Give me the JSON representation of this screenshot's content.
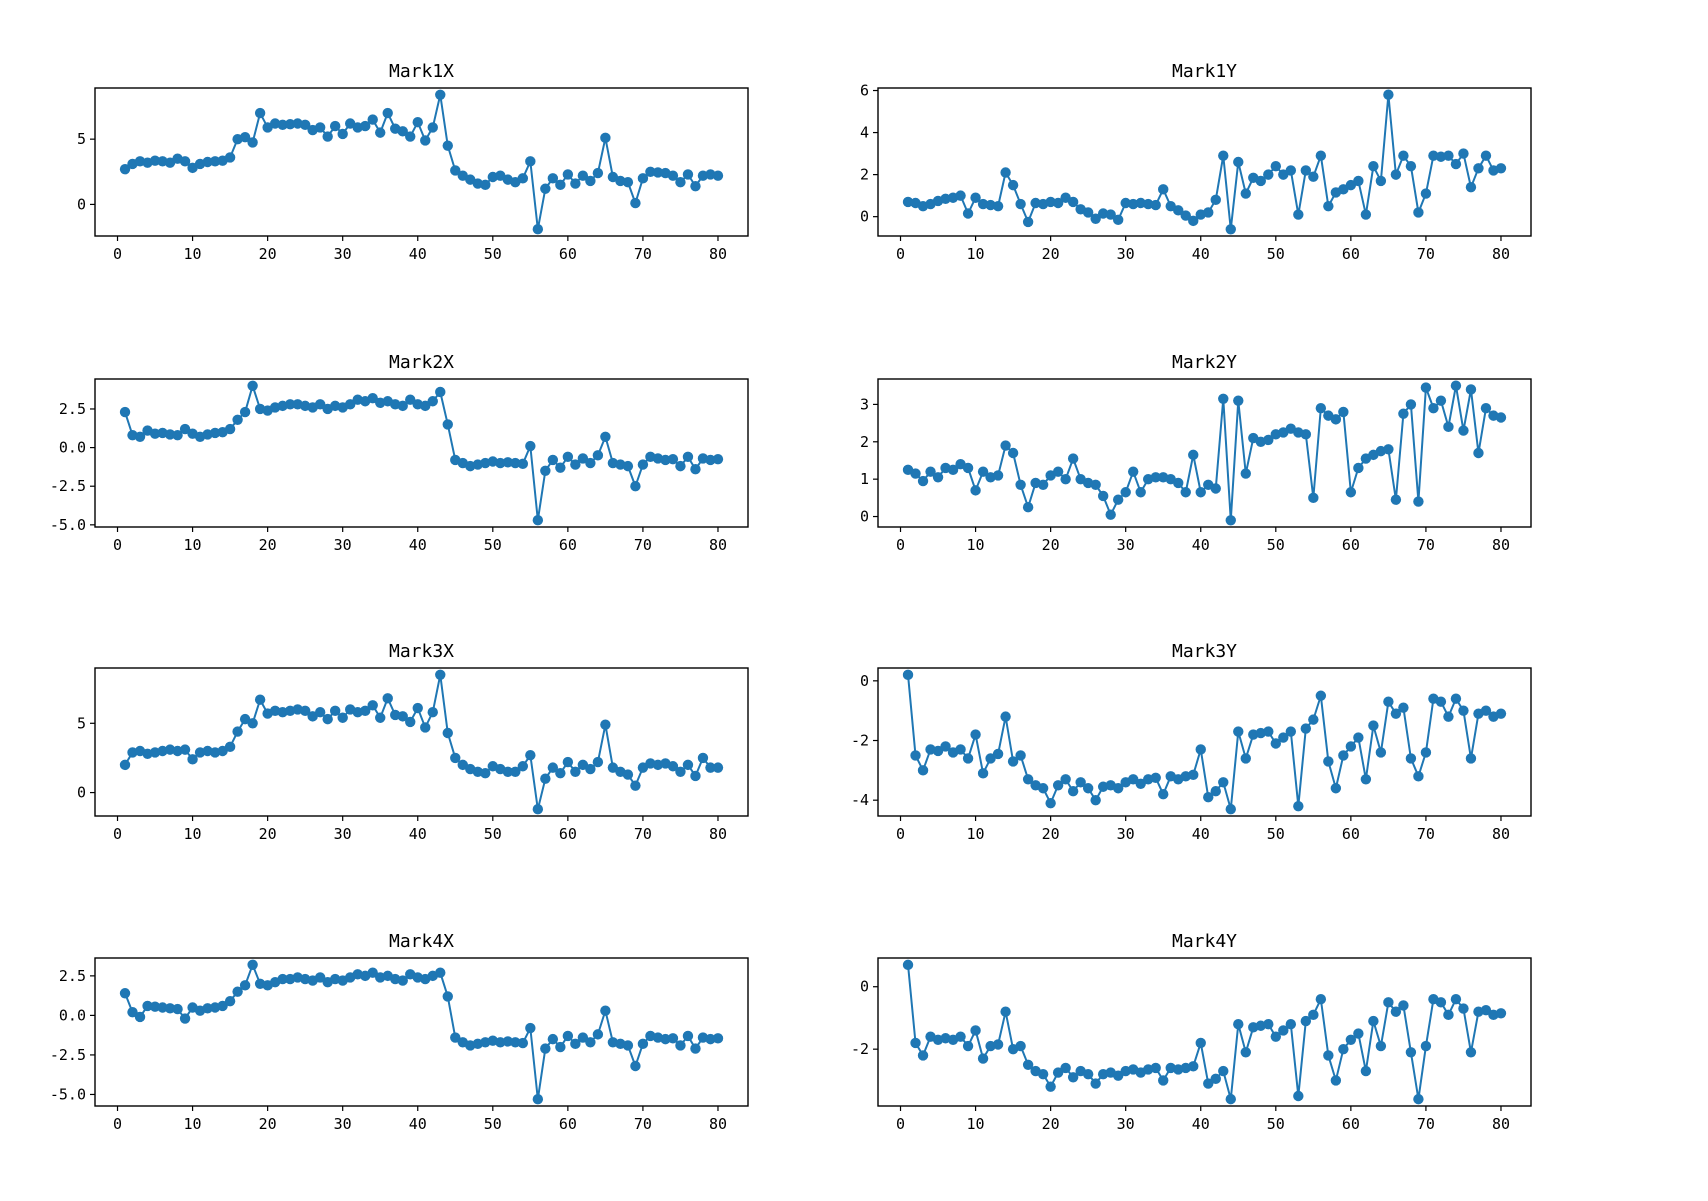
{
  "figure": {
    "background": "#ffffff",
    "line_color": "#1f77b4",
    "marker_color": "#1f77b4",
    "axis_color": "#000000",
    "grid": false,
    "legend": "none"
  },
  "chart_data": [
    {
      "type": "line",
      "title": "Mark1X",
      "x_start": 1,
      "xlim": [
        -3,
        84
      ],
      "ylim": [
        -2.42,
        8.92
      ],
      "xticks": [
        0,
        10,
        20,
        30,
        40,
        50,
        60,
        70,
        80
      ],
      "yticks": [
        0,
        5
      ],
      "ytick_labels": [
        "0",
        "5"
      ],
      "values": [
        2.7,
        3.1,
        3.3,
        3.2,
        3.35,
        3.3,
        3.2,
        3.5,
        3.3,
        2.8,
        3.1,
        3.25,
        3.3,
        3.35,
        3.6,
        5.0,
        5.15,
        4.75,
        7.0,
        5.9,
        6.2,
        6.1,
        6.15,
        6.2,
        6.1,
        5.7,
        5.9,
        5.2,
        6.0,
        5.4,
        6.2,
        5.9,
        6.0,
        6.5,
        5.5,
        7.0,
        5.8,
        5.6,
        5.2,
        6.3,
        4.9,
        5.9,
        8.4,
        4.5,
        2.6,
        2.2,
        1.9,
        1.6,
        1.5,
        2.1,
        2.2,
        1.9,
        1.7,
        2.0,
        3.3,
        -1.9,
        1.2,
        2.0,
        1.5,
        2.3,
        1.6,
        2.2,
        1.8,
        2.4,
        5.1,
        2.1,
        1.8,
        1.7,
        0.1,
        2.0,
        2.5,
        2.45,
        2.4,
        2.2,
        1.7,
        2.3,
        1.4,
        2.2,
        2.3,
        2.2
      ]
    },
    {
      "type": "line",
      "title": "Mark1Y",
      "x_start": 1,
      "xlim": [
        -3,
        84
      ],
      "ylim": [
        -0.92,
        6.12
      ],
      "xticks": [
        0,
        10,
        20,
        30,
        40,
        50,
        60,
        70,
        80
      ],
      "yticks": [
        0,
        2,
        4,
        6
      ],
      "ytick_labels": [
        "0",
        "2",
        "4",
        "6"
      ],
      "values": [
        0.7,
        0.65,
        0.5,
        0.6,
        0.75,
        0.85,
        0.9,
        1.0,
        0.15,
        0.9,
        0.6,
        0.55,
        0.5,
        2.1,
        1.5,
        0.6,
        -0.25,
        0.65,
        0.6,
        0.7,
        0.65,
        0.9,
        0.7,
        0.35,
        0.2,
        -0.1,
        0.15,
        0.1,
        -0.15,
        0.65,
        0.6,
        0.65,
        0.6,
        0.55,
        1.3,
        0.5,
        0.3,
        0.05,
        -0.2,
        0.1,
        0.2,
        0.8,
        2.9,
        -0.6,
        2.6,
        1.1,
        1.85,
        1.7,
        2.0,
        2.4,
        2.0,
        2.2,
        0.1,
        2.2,
        1.9,
        2.9,
        0.5,
        1.15,
        1.3,
        1.5,
        1.7,
        0.1,
        2.4,
        1.7,
        5.8,
        2.0,
        2.9,
        2.4,
        0.2,
        1.1,
        2.9,
        2.85,
        2.9,
        2.5,
        3.0,
        1.4,
        2.3,
        2.9,
        2.2,
        2.3
      ]
    },
    {
      "type": "line",
      "title": "Mark2X",
      "x_start": 1,
      "xlim": [
        -3,
        84
      ],
      "ylim": [
        -5.14,
        4.44
      ],
      "xticks": [
        0,
        10,
        20,
        30,
        40,
        50,
        60,
        70,
        80
      ],
      "yticks": [
        -5.0,
        -2.5,
        0.0,
        2.5
      ],
      "ytick_labels": [
        "-5.0",
        "-2.5",
        "0.0",
        "2.5"
      ],
      "values": [
        2.3,
        0.8,
        0.7,
        1.1,
        0.9,
        0.95,
        0.85,
        0.8,
        1.2,
        0.9,
        0.7,
        0.85,
        0.95,
        1.0,
        1.2,
        1.8,
        2.3,
        4.0,
        2.5,
        2.4,
        2.6,
        2.7,
        2.8,
        2.8,
        2.7,
        2.6,
        2.8,
        2.5,
        2.7,
        2.6,
        2.8,
        3.1,
        3.0,
        3.2,
        2.9,
        3.0,
        2.8,
        2.7,
        3.1,
        2.8,
        2.7,
        3.0,
        3.6,
        1.5,
        -0.8,
        -1.0,
        -1.2,
        -1.1,
        -1.0,
        -0.9,
        -1.0,
        -0.95,
        -1.0,
        -1.05,
        0.1,
        -4.7,
        -1.5,
        -0.8,
        -1.3,
        -0.6,
        -1.1,
        -0.7,
        -1.0,
        -0.5,
        0.7,
        -1.0,
        -1.1,
        -1.2,
        -2.5,
        -1.1,
        -0.6,
        -0.7,
        -0.8,
        -0.75,
        -1.2,
        -0.6,
        -1.4,
        -0.7,
        -0.8,
        -0.75
      ]
    },
    {
      "type": "line",
      "title": "Mark2Y",
      "x_start": 1,
      "xlim": [
        -3,
        84
      ],
      "ylim": [
        -0.28,
        3.68
      ],
      "xticks": [
        0,
        10,
        20,
        30,
        40,
        50,
        60,
        70,
        80
      ],
      "yticks": [
        0,
        1,
        2,
        3
      ],
      "ytick_labels": [
        "0",
        "1",
        "2",
        "3"
      ],
      "values": [
        1.25,
        1.15,
        0.95,
        1.2,
        1.05,
        1.3,
        1.25,
        1.4,
        1.3,
        0.7,
        1.2,
        1.05,
        1.1,
        1.9,
        1.7,
        0.85,
        0.25,
        0.9,
        0.85,
        1.1,
        1.2,
        1.0,
        1.55,
        1.0,
        0.9,
        0.85,
        0.55,
        0.05,
        0.45,
        0.65,
        1.2,
        0.65,
        1.0,
        1.05,
        1.05,
        1.0,
        0.9,
        0.65,
        1.65,
        0.65,
        0.85,
        0.75,
        3.15,
        -0.1,
        3.1,
        1.15,
        2.1,
        2.0,
        2.05,
        2.2,
        2.25,
        2.35,
        2.25,
        2.2,
        0.5,
        2.9,
        2.7,
        2.6,
        2.8,
        0.65,
        1.3,
        1.55,
        1.65,
        1.75,
        1.8,
        0.45,
        2.75,
        3.0,
        0.4,
        3.45,
        2.9,
        3.1,
        2.4,
        3.5,
        2.3,
        3.4,
        1.7,
        2.9,
        2.7,
        2.65
      ]
    },
    {
      "type": "line",
      "title": "Mark3X",
      "x_start": 1,
      "xlim": [
        -3,
        84
      ],
      "ylim": [
        -1.69,
        8.99
      ],
      "xticks": [
        0,
        10,
        20,
        30,
        40,
        50,
        60,
        70,
        80
      ],
      "yticks": [
        0,
        5
      ],
      "ytick_labels": [
        "0",
        "5"
      ],
      "values": [
        2.0,
        2.9,
        3.0,
        2.8,
        2.9,
        3.0,
        3.1,
        3.0,
        3.1,
        2.4,
        2.9,
        3.0,
        2.9,
        3.0,
        3.3,
        4.4,
        5.3,
        5.0,
        6.7,
        5.7,
        5.9,
        5.8,
        5.9,
        6.0,
        5.9,
        5.5,
        5.8,
        5.3,
        5.9,
        5.4,
        6.0,
        5.8,
        5.9,
        6.3,
        5.4,
        6.8,
        5.6,
        5.5,
        5.1,
        6.1,
        4.7,
        5.8,
        8.5,
        4.3,
        2.5,
        2.0,
        1.7,
        1.5,
        1.4,
        1.9,
        1.7,
        1.5,
        1.5,
        1.9,
        2.7,
        -1.2,
        1.0,
        1.8,
        1.4,
        2.2,
        1.5,
        2.0,
        1.7,
        2.2,
        4.9,
        1.8,
        1.5,
        1.3,
        0.5,
        1.8,
        2.1,
        2.0,
        2.1,
        1.9,
        1.5,
        2.0,
        1.2,
        2.5,
        1.8,
        1.8
      ]
    },
    {
      "type": "line",
      "title": "Mark3Y",
      "x_start": 1,
      "xlim": [
        -3,
        84
      ],
      "ylim": [
        -4.53,
        0.43
      ],
      "xticks": [
        0,
        10,
        20,
        30,
        40,
        50,
        60,
        70,
        80
      ],
      "yticks": [
        -4,
        -2,
        0
      ],
      "ytick_labels": [
        "-4",
        "-2",
        "0"
      ],
      "values": [
        0.2,
        -2.5,
        -3.0,
        -2.3,
        -2.35,
        -2.2,
        -2.4,
        -2.3,
        -2.6,
        -1.8,
        -3.1,
        -2.6,
        -2.45,
        -1.2,
        -2.7,
        -2.5,
        -3.3,
        -3.5,
        -3.6,
        -4.1,
        -3.5,
        -3.3,
        -3.7,
        -3.4,
        -3.6,
        -4.0,
        -3.55,
        -3.5,
        -3.6,
        -3.4,
        -3.3,
        -3.45,
        -3.3,
        -3.25,
        -3.8,
        -3.2,
        -3.3,
        -3.2,
        -3.15,
        -2.3,
        -3.9,
        -3.7,
        -3.4,
        -4.3,
        -1.7,
        -2.6,
        -1.8,
        -1.75,
        -1.7,
        -2.1,
        -1.9,
        -1.7,
        -4.2,
        -1.6,
        -1.3,
        -0.5,
        -2.7,
        -3.6,
        -2.5,
        -2.2,
        -1.9,
        -3.3,
        -1.5,
        -2.4,
        -0.7,
        -1.1,
        -0.9,
        -2.6,
        -3.2,
        -2.4,
        -0.6,
        -0.7,
        -1.2,
        -0.6,
        -1.0,
        -2.6,
        -1.1,
        -1.0,
        -1.2,
        -1.1
      ]
    },
    {
      "type": "line",
      "title": "Mark4X",
      "x_start": 1,
      "xlim": [
        -3,
        84
      ],
      "ylim": [
        -5.73,
        3.63
      ],
      "xticks": [
        0,
        10,
        20,
        30,
        40,
        50,
        60,
        70,
        80
      ],
      "yticks": [
        -5.0,
        -2.5,
        0.0,
        2.5
      ],
      "ytick_labels": [
        "-5.0",
        "-2.5",
        "0.0",
        "2.5"
      ],
      "values": [
        1.4,
        0.2,
        -0.1,
        0.6,
        0.55,
        0.5,
        0.45,
        0.4,
        -0.2,
        0.5,
        0.3,
        0.45,
        0.5,
        0.6,
        0.9,
        1.5,
        1.9,
        3.2,
        2.0,
        1.9,
        2.1,
        2.3,
        2.3,
        2.4,
        2.3,
        2.2,
        2.4,
        2.1,
        2.3,
        2.2,
        2.4,
        2.6,
        2.5,
        2.7,
        2.4,
        2.5,
        2.3,
        2.2,
        2.6,
        2.4,
        2.3,
        2.5,
        2.7,
        1.2,
        -1.4,
        -1.7,
        -1.9,
        -1.8,
        -1.7,
        -1.6,
        -1.7,
        -1.65,
        -1.7,
        -1.75,
        -0.8,
        -5.3,
        -2.1,
        -1.5,
        -2.0,
        -1.3,
        -1.8,
        -1.4,
        -1.7,
        -1.2,
        0.3,
        -1.7,
        -1.8,
        -1.9,
        -3.2,
        -1.8,
        -1.3,
        -1.4,
        -1.5,
        -1.45,
        -1.9,
        -1.3,
        -2.1,
        -1.4,
        -1.5,
        -1.45
      ]
    },
    {
      "type": "line",
      "title": "Mark4Y",
      "x_start": 1,
      "xlim": [
        -3,
        84
      ],
      "ylim": [
        -3.82,
        0.92
      ],
      "xticks": [
        0,
        10,
        20,
        30,
        40,
        50,
        60,
        70,
        80
      ],
      "yticks": [
        -2,
        0
      ],
      "ytick_labels": [
        "-2",
        "0"
      ],
      "values": [
        0.7,
        -1.8,
        -2.2,
        -1.6,
        -1.7,
        -1.65,
        -1.7,
        -1.6,
        -1.9,
        -1.4,
        -2.3,
        -1.9,
        -1.85,
        -0.8,
        -2.0,
        -1.9,
        -2.5,
        -2.7,
        -2.8,
        -3.2,
        -2.75,
        -2.6,
        -2.9,
        -2.7,
        -2.8,
        -3.1,
        -2.8,
        -2.75,
        -2.85,
        -2.7,
        -2.65,
        -2.75,
        -2.65,
        -2.6,
        -3.0,
        -2.6,
        -2.65,
        -2.6,
        -2.55,
        -1.8,
        -3.1,
        -2.95,
        -2.7,
        -3.6,
        -1.2,
        -2.1,
        -1.3,
        -1.25,
        -1.2,
        -1.6,
        -1.4,
        -1.2,
        -3.5,
        -1.1,
        -0.9,
        -0.4,
        -2.2,
        -3.0,
        -2.0,
        -1.7,
        -1.5,
        -2.7,
        -1.1,
        -1.9,
        -0.5,
        -0.8,
        -0.6,
        -2.1,
        -3.6,
        -1.9,
        -0.4,
        -0.5,
        -0.9,
        -0.4,
        -0.7,
        -2.1,
        -0.8,
        -0.75,
        -0.9,
        -0.85
      ]
    }
  ]
}
